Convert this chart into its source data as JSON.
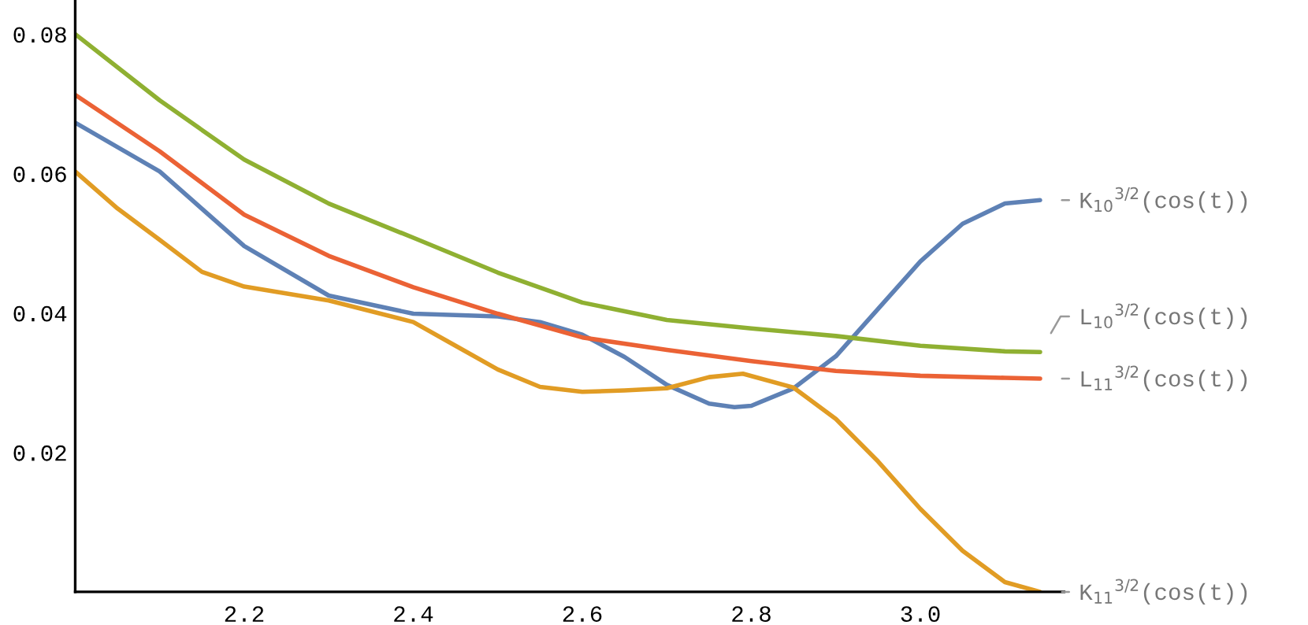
{
  "chart_data": {
    "type": "line",
    "xlim": [
      2.0,
      3.17
    ],
    "ylim": [
      0,
      0.0849
    ],
    "xticks": [
      2.2,
      2.4,
      2.6,
      2.8,
      {
        "value": 3.0,
        "label": "3.0"
      }
    ],
    "yticks": [
      0.02,
      0.04,
      0.06,
      0.08
    ],
    "grid": false,
    "legend": false,
    "marker": "none",
    "line_style": "solid",
    "series": [
      {
        "name": "K$_{10}$$^{3/2}$(cos(t))",
        "color": "#5e81b5",
        "x": [
          2.0,
          2.1,
          2.2,
          2.3,
          2.4,
          2.5,
          2.55,
          2.6,
          2.65,
          2.7,
          2.75,
          2.78,
          2.8,
          2.85,
          2.9,
          2.95,
          3.0,
          3.05,
          3.1,
          3.1416
        ],
        "values": [
          0.0673,
          0.0603,
          0.0496,
          0.0425,
          0.0399,
          0.0395,
          0.0387,
          0.0369,
          0.0337,
          0.0297,
          0.027,
          0.0265,
          0.0267,
          0.0292,
          0.0338,
          0.0406,
          0.0474,
          0.0528,
          0.0557,
          0.0562
        ]
      },
      {
        "name": "K$_{11}$$^{3/2}$(cos(t))",
        "color": "#e19c24",
        "x": [
          2.0,
          2.05,
          2.1,
          2.15,
          2.2,
          2.3,
          2.4,
          2.45,
          2.5,
          2.55,
          2.6,
          2.65,
          2.7,
          2.75,
          2.79,
          2.85,
          2.9,
          2.95,
          3.0,
          3.05,
          3.1,
          3.1416
        ],
        "values": [
          0.0603,
          0.055,
          0.0505,
          0.0459,
          0.0438,
          0.0418,
          0.0387,
          0.0353,
          0.0319,
          0.0294,
          0.0287,
          0.0289,
          0.0292,
          0.0308,
          0.0313,
          0.0293,
          0.0248,
          0.0187,
          0.0119,
          0.0059,
          0.0014,
          0.0
        ]
      },
      {
        "name": "L$_{10}$$^{3/2}$(cos(t))",
        "color": "#8fb032",
        "x": [
          2.0,
          2.1,
          2.2,
          2.3,
          2.4,
          2.5,
          2.6,
          2.7,
          2.8,
          2.9,
          3.0,
          3.1,
          3.1416
        ],
        "values": [
          0.08,
          0.0705,
          0.062,
          0.0557,
          0.0508,
          0.0458,
          0.0415,
          0.039,
          0.0378,
          0.0367,
          0.0353,
          0.0345,
          0.0344
        ]
      },
      {
        "name": "L$_{11}$$^{3/2}$(cos(t))",
        "color": "#eb6235",
        "x": [
          2.0,
          2.1,
          2.2,
          2.3,
          2.4,
          2.5,
          2.6,
          2.7,
          2.8,
          2.9,
          3.0,
          3.1,
          3.1416
        ],
        "values": [
          0.0713,
          0.0632,
          0.0541,
          0.0482,
          0.0437,
          0.0399,
          0.0365,
          0.0347,
          0.0331,
          0.0317,
          0.031,
          0.0307,
          0.0306
        ]
      }
    ]
  }
}
